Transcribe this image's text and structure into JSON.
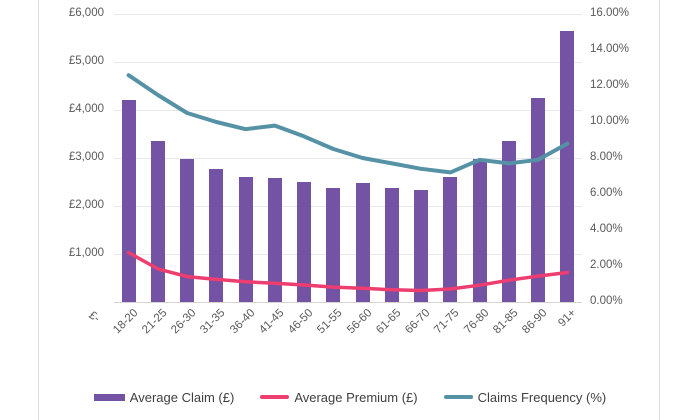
{
  "chart_data": {
    "type": "bar",
    "combo": "bar+line, dual axis",
    "title": "",
    "categories": [
      "18-20",
      "21-25",
      "26-30",
      "31-35",
      "36-40",
      "41-45",
      "46-50",
      "51-55",
      "56-60",
      "61-65",
      "66-70",
      "71-75",
      "76-80",
      "81-85",
      "86-90",
      "91+"
    ],
    "series": [
      {
        "name": "Average Claim (£)",
        "type": "bar",
        "axis": "left",
        "color": "#7452a4",
        "values": [
          4200,
          3360,
          2980,
          2770,
          2600,
          2580,
          2510,
          2380,
          2480,
          2370,
          2340,
          2610,
          2980,
          3360,
          4240,
          5650
        ]
      },
      {
        "name": "Average Premium (£)",
        "type": "line",
        "axis": "left",
        "color": "#ee3d6f",
        "values": [
          1030,
          690,
          530,
          470,
          420,
          390,
          355,
          310,
          285,
          255,
          240,
          270,
          350,
          455,
          540,
          615
        ]
      },
      {
        "name": "Claims Frequency (%)",
        "type": "line",
        "axis": "right",
        "color": "#5592a5",
        "values": [
          12.6,
          11.5,
          10.5,
          10.0,
          9.6,
          9.8,
          9.2,
          8.5,
          8.0,
          7.7,
          7.4,
          7.2,
          7.9,
          7.7,
          7.9,
          8.8
        ]
      }
    ],
    "left_axis": {
      "min": 0,
      "max": 6000,
      "ticks": [
        "£6,000",
        "£5,000",
        "£4,000",
        "£3,000",
        "£2,000",
        "£1,000",
        "£-"
      ]
    },
    "right_axis": {
      "min": 0,
      "max": 16,
      "ticks": [
        "16.00%",
        "14.00%",
        "12.00%",
        "10.00%",
        "8.00%",
        "6.00%",
        "4.00%",
        "2.00%",
        "0.00%"
      ]
    },
    "grid": true,
    "legend_position": "bottom"
  },
  "colors": {
    "bar": "#7452a4",
    "premium_line": "#ee3d6f",
    "frequency_line": "#5592a5",
    "gridline": "#e9e9e9",
    "axis_text": "#595959",
    "legend_text": "#3f3f3f",
    "frame": "#dcdcdc"
  }
}
